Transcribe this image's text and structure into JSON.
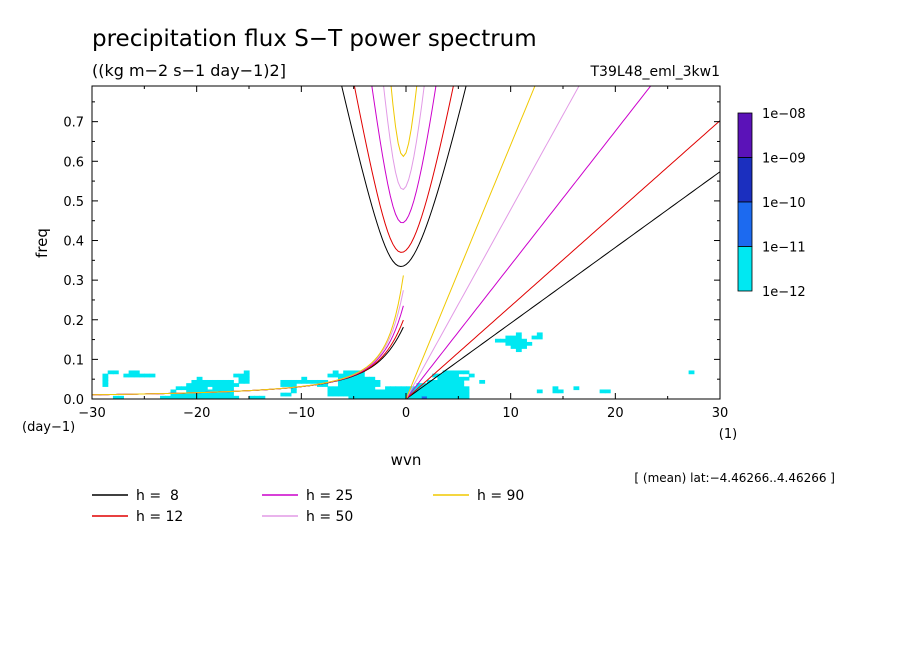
{
  "header": {
    "title": "precipitation flux S−T power spectrum",
    "units": "((kg m−2 s−1 day−1)2]",
    "run_id": "T39L48_eml_3kw1"
  },
  "chart_data": {
    "type": "heatmap",
    "title": "precipitation flux S−T power spectrum",
    "subtitle": "((kg m−2 s−1 day−1)2]",
    "run_label": "T39L48_eml_3kw1",
    "xlabel": "wvn",
    "x_unit_label": "(1)",
    "ylabel": "freq",
    "y_unit_label": "(day−1)",
    "xlim": [
      -30,
      30
    ],
    "ylim": [
      0,
      0.79
    ],
    "x_ticks": [
      -30,
      -20,
      -10,
      0,
      10,
      20,
      30
    ],
    "y_ticks": [
      0.0,
      0.1,
      0.2,
      0.3,
      0.4,
      0.5,
      0.6,
      0.7
    ],
    "x_tick_labels": [
      "−30",
      "−20",
      "−10",
      "0",
      "10",
      "20",
      "30"
    ],
    "y_tick_labels": [
      "0.0",
      "0.1",
      "0.2",
      "0.3",
      "0.4",
      "0.5",
      "0.6",
      "0.7"
    ],
    "colorbar": {
      "labels": [
        "1e−08",
        "1e−09",
        "1e−10",
        "1e−11",
        "1e−12"
      ],
      "colors": [
        "#5b12b8",
        "#1b2fbf",
        "#1c6af0",
        "#00e8f2"
      ]
    },
    "note": "[ (mean) lat:−4.46266..4.46266 ]",
    "dispersion_curves": [
      {
        "label": "h =  8",
        "h": 8,
        "color": "#000000"
      },
      {
        "label": "h = 12",
        "h": 12,
        "color": "#e00000"
      },
      {
        "label": "h = 25",
        "h": 25,
        "color": "#cc00cc"
      },
      {
        "label": "h = 50",
        "h": 50,
        "color": "#e29ae6"
      },
      {
        "label": "h = 90",
        "h": 90,
        "color": "#f0c800"
      }
    ]
  }
}
